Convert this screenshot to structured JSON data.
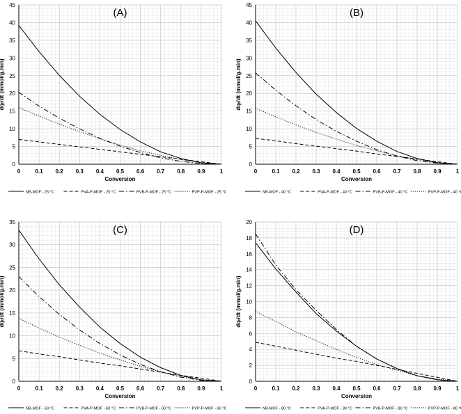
{
  "chart_data": [
    {
      "type": "line",
      "title": "(A)",
      "xlabel": "Conversion",
      "ylabel": "dqₜ/dt (mmol/g.min)",
      "xlim": [
        0,
        1
      ],
      "ylim": [
        0,
        45
      ],
      "yticks": [
        0,
        5,
        10,
        15,
        20,
        25,
        30,
        35,
        40,
        45
      ],
      "xticks": [
        0,
        0.1,
        0.2,
        0.3,
        0.4,
        0.5,
        0.6,
        0.7,
        0.8,
        0.9,
        1
      ],
      "grid": true,
      "legend": "bottom",
      "x": [
        0,
        0.1,
        0.2,
        0.3,
        0.4,
        0.5,
        0.6,
        0.7,
        0.8,
        0.9,
        1
      ],
      "series": [
        {
          "name": "NB-MOF - 25 °C",
          "style": "solid",
          "values": [
            39.2,
            31.8,
            25.1,
            19.2,
            14.1,
            9.8,
            6.3,
            3.5,
            1.6,
            0.4,
            0
          ]
        },
        {
          "name": "PVA-P-MOF - 25 °C",
          "style": "dashed",
          "values": [
            7.0,
            6.3,
            5.6,
            4.9,
            4.2,
            3.5,
            2.8,
            2.1,
            1.4,
            0.7,
            0
          ]
        },
        {
          "name": "PVB-P-MOF - 25 °C",
          "style": "dashdot",
          "values": [
            20.3,
            16.4,
            13.0,
            10.0,
            7.3,
            5.1,
            3.3,
            1.8,
            0.8,
            0.2,
            0
          ]
        },
        {
          "name": "PVP-P-MOF - 25 °C",
          "style": "dotted",
          "values": [
            16.0,
            13.6,
            11.3,
            9.2,
            7.2,
            5.4,
            3.8,
            2.5,
            1.3,
            0.5,
            0
          ]
        }
      ]
    },
    {
      "type": "line",
      "title": "(B)",
      "xlabel": "Conversion",
      "ylabel": "dqₜ/dt (mmol/g.min)",
      "xlim": [
        0,
        1
      ],
      "ylim": [
        0,
        45
      ],
      "yticks": [
        0,
        5,
        10,
        15,
        20,
        25,
        30,
        35,
        40,
        45
      ],
      "xticks": [
        0,
        0.1,
        0.2,
        0.3,
        0.4,
        0.5,
        0.6,
        0.7,
        0.8,
        0.9,
        1
      ],
      "grid": true,
      "legend": "bottom",
      "x": [
        0,
        0.1,
        0.2,
        0.3,
        0.4,
        0.5,
        0.6,
        0.7,
        0.8,
        0.9,
        1
      ],
      "series": [
        {
          "name": "NB-MOF - 40 °C",
          "style": "solid",
          "values": [
            40.5,
            32.8,
            25.9,
            19.8,
            14.6,
            10.1,
            6.5,
            3.6,
            1.6,
            0.4,
            0
          ]
        },
        {
          "name": "PVA-P-MOF - 40 °C",
          "style": "dashed",
          "values": [
            7.3,
            6.6,
            5.8,
            5.1,
            4.4,
            3.7,
            2.9,
            2.2,
            1.5,
            0.7,
            0
          ]
        },
        {
          "name": "PVB-P-MOF - 40 °C",
          "style": "dashdot",
          "values": [
            25.8,
            20.9,
            16.5,
            12.6,
            9.3,
            6.5,
            4.1,
            2.3,
            1.0,
            0.3,
            0
          ]
        },
        {
          "name": "PVP-P-MOF - 40 °C",
          "style": "dotted",
          "values": [
            15.8,
            13.4,
            11.1,
            9.0,
            7.1,
            5.3,
            3.8,
            2.4,
            1.3,
            0.5,
            0
          ]
        }
      ]
    },
    {
      "type": "line",
      "title": "(C)",
      "xlabel": "Conversion",
      "ylabel": "dqₜ/dt (mmol/g.min)",
      "xlim": [
        0,
        1
      ],
      "ylim": [
        0,
        35
      ],
      "yticks": [
        0,
        5,
        10,
        15,
        20,
        25,
        30,
        35
      ],
      "xticks": [
        0,
        0.1,
        0.2,
        0.3,
        0.4,
        0.5,
        0.6,
        0.7,
        0.8,
        0.9,
        1
      ],
      "grid": true,
      "legend": "bottom",
      "x": [
        0,
        0.1,
        0.2,
        0.3,
        0.4,
        0.5,
        0.6,
        0.7,
        0.8,
        0.9,
        1
      ],
      "series": [
        {
          "name": "NB-MOF - 60 °C",
          "style": "solid",
          "values": [
            33.2,
            26.9,
            21.2,
            16.3,
            11.9,
            8.3,
            5.3,
            3.0,
            1.3,
            0.3,
            0
          ]
        },
        {
          "name": "PVA-P-MOF - 60 °C",
          "style": "dashed",
          "values": [
            6.7,
            6.0,
            5.4,
            4.7,
            4.0,
            3.4,
            2.7,
            2.0,
            1.3,
            0.7,
            0
          ]
        },
        {
          "name": "PVB-P-MOF - 60 °C",
          "style": "dashdot",
          "values": [
            23.0,
            18.6,
            14.7,
            11.3,
            8.3,
            5.8,
            3.7,
            2.1,
            0.9,
            0.2,
            0
          ]
        },
        {
          "name": "PVP-P-MOF - 60 °C",
          "style": "dotted",
          "values": [
            13.8,
            11.7,
            9.7,
            7.9,
            6.2,
            4.7,
            3.3,
            2.1,
            1.1,
            0.4,
            0
          ]
        }
      ]
    },
    {
      "type": "line",
      "title": "(D)",
      "xlabel": "Conversion",
      "ylabel": "dqₜ/dt (mmol/g.min)",
      "xlim": [
        0,
        1
      ],
      "ylim": [
        0,
        20
      ],
      "yticks": [
        0,
        2,
        4,
        6,
        8,
        10,
        12,
        14,
        16,
        18,
        20
      ],
      "xticks": [
        0,
        0.1,
        0.2,
        0.3,
        0.4,
        0.5,
        0.6,
        0.7,
        0.8,
        0.9,
        1
      ],
      "grid": true,
      "legend": "bottom",
      "x": [
        0,
        0.1,
        0.2,
        0.3,
        0.4,
        0.5,
        0.6,
        0.7,
        0.8,
        0.9,
        1
      ],
      "series": [
        {
          "name": "NB-MOF - 80 °C",
          "style": "solid",
          "values": [
            17.4,
            14.1,
            11.2,
            8.5,
            6.3,
            4.4,
            2.8,
            1.6,
            0.7,
            0.2,
            0
          ]
        },
        {
          "name": "PVA-P-MOF - 80 °C",
          "style": "dashed",
          "values": [
            4.9,
            4.4,
            3.9,
            3.4,
            2.9,
            2.5,
            2.0,
            1.5,
            1.0,
            0.5,
            0
          ]
        },
        {
          "name": "PVB-P-MOF - 80 °C",
          "style": "dashdot",
          "values": [
            18.5,
            14.6,
            11.5,
            8.9,
            6.5,
            4.4,
            2.8,
            1.6,
            0.7,
            0.2,
            0
          ]
        },
        {
          "name": "PVP-P-MOF - 80 °C",
          "style": "dotted",
          "values": [
            8.8,
            7.5,
            6.2,
            5.1,
            4.0,
            3.0,
            2.1,
            1.4,
            0.7,
            0.3,
            0
          ]
        }
      ]
    }
  ]
}
